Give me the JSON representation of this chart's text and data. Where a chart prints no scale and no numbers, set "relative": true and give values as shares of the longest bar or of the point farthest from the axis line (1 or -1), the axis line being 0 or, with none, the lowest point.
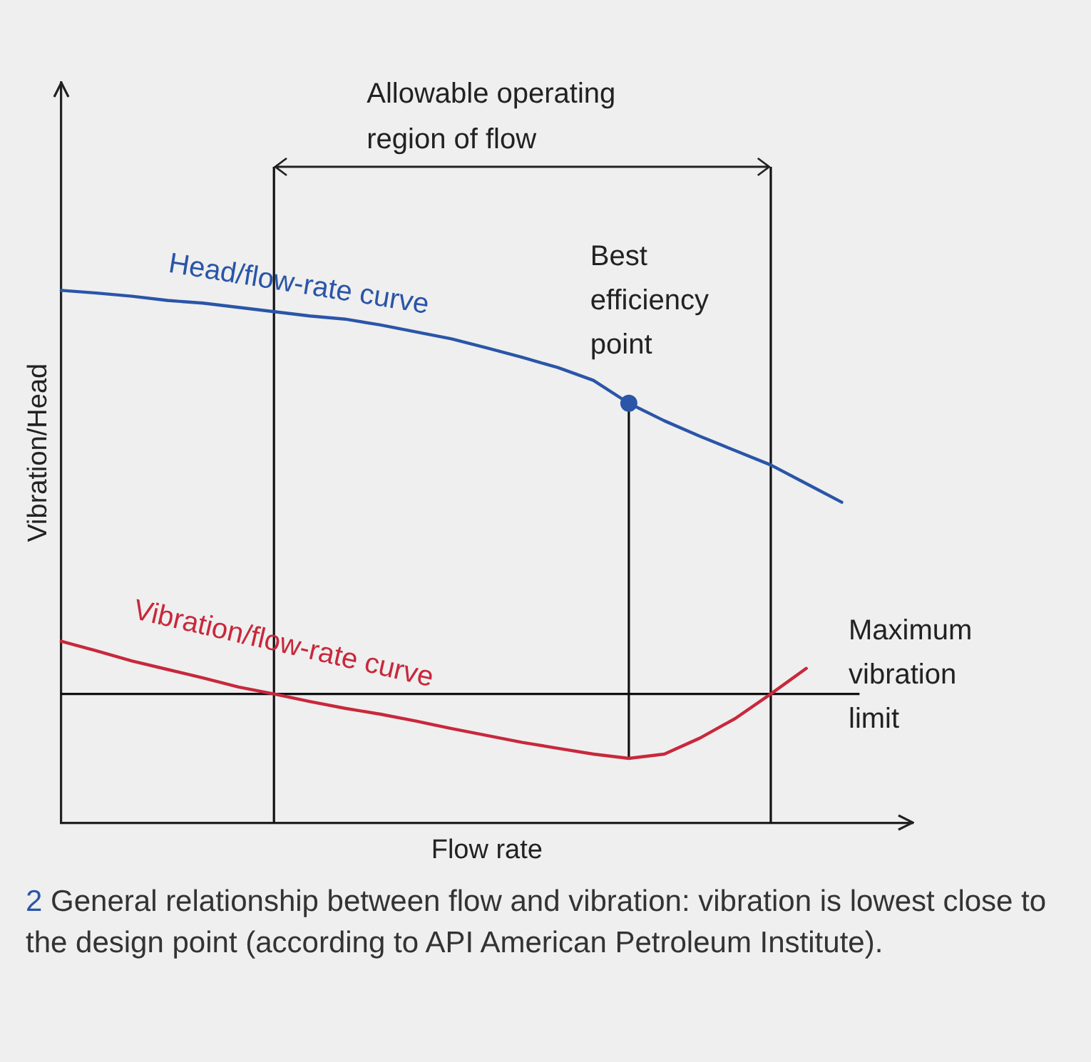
{
  "chart_data": {
    "type": "line",
    "relative": true,
    "tick_labels": false,
    "grid": false,
    "legend": false,
    "marker": "none",
    "xlabel": "Flow rate",
    "ylabel": "Vibration/Head",
    "categories": [
      null,
      null,
      null,
      null,
      null,
      null,
      null,
      null,
      null,
      null,
      null,
      null,
      null,
      null,
      null,
      null,
      null,
      null,
      null,
      null,
      null,
      null,
      null,
      null,
      null
    ],
    "series": [
      {
        "name": "Head/flow-rate curve",
        "color": "#2a55a8",
        "values": [
          1,
          0.995,
          0.989,
          0.981,
          0.976,
          0.968,
          0.96,
          0.952,
          0.946,
          0.935,
          0.922,
          0.909,
          0.892,
          0.874,
          0.855,
          0.831,
          0.788,
          0.755,
          0.726,
          0.699,
          0.672,
          0.637,
          0.602,
          null,
          null
        ]
      },
      {
        "name": "Vibration/flow-rate curve",
        "color": "#c8283c",
        "values": [
          0.341,
          0.323,
          0.304,
          0.288,
          0.272,
          0.255,
          0.242,
          0.228,
          0.215,
          0.204,
          0.191,
          0.177,
          0.164,
          0.151,
          0.14,
          0.129,
          0.121,
          0.129,
          0.159,
          0.196,
          0.242,
          0.29,
          null,
          null,
          null
        ]
      }
    ],
    "ref_lines": [
      {
        "axis": "y",
        "value": 0.242,
        "label": "Maximum vibration limit",
        "color": "#111111"
      }
    ],
    "annotations": [
      "Allowable operating region of flow",
      "Best efficiency point",
      "2 General relationship between flow and vibration: vibration is lowest close to the design point (according to API American Petroleum Institute)."
    ]
  }
}
